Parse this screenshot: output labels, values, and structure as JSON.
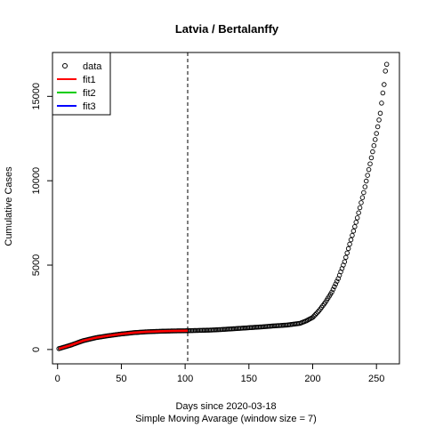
{
  "chart_data": {
    "type": "scatter",
    "title": "Latvia / Bertalanffy",
    "xlabel": "Days since 2020-03-18",
    "subtitle": "Simple Moving Avarage (window size = 7)",
    "ylabel": "Cumulative Cases",
    "xlim": [
      -4,
      268
    ],
    "ylim": [
      -850,
      17600
    ],
    "x_ticks": [
      0,
      50,
      100,
      150,
      200,
      250
    ],
    "y_ticks": [
      0,
      5000,
      10000,
      15000
    ],
    "y_tick_labels": [
      "0",
      "5000",
      "10000",
      "15000"
    ],
    "vline_x": 102,
    "legend_position": "top-left",
    "legend": [
      {
        "label": "data",
        "symbol": "circle",
        "color": "#000000"
      },
      {
        "label": "fit1",
        "symbol": "line",
        "color": "#ff0000"
      },
      {
        "label": "fit2",
        "symbol": "line",
        "color": "#00cd00"
      },
      {
        "label": "fit3",
        "symbol": "line",
        "color": "#0000ff"
      }
    ],
    "data_anchors": [
      [
        1,
        50
      ],
      [
        10,
        250
      ],
      [
        20,
        520
      ],
      [
        30,
        700
      ],
      [
        40,
        820
      ],
      [
        50,
        920
      ],
      [
        60,
        1000
      ],
      [
        70,
        1050
      ],
      [
        80,
        1080
      ],
      [
        90,
        1100
      ],
      [
        100,
        1110
      ],
      [
        110,
        1130
      ],
      [
        120,
        1150
      ],
      [
        130,
        1190
      ],
      [
        140,
        1240
      ],
      [
        150,
        1290
      ],
      [
        160,
        1340
      ],
      [
        170,
        1400
      ],
      [
        180,
        1450
      ],
      [
        190,
        1550
      ],
      [
        195,
        1700
      ],
      [
        200,
        1900
      ],
      [
        205,
        2300
      ],
      [
        210,
        2800
      ],
      [
        215,
        3400
      ],
      [
        220,
        4200
      ],
      [
        225,
        5200
      ],
      [
        230,
        6500
      ],
      [
        235,
        7800
      ],
      [
        240,
        9300
      ],
      [
        245,
        11000
      ],
      [
        250,
        12800
      ],
      [
        253,
        14000
      ],
      [
        255,
        15200
      ],
      [
        256,
        15700
      ],
      [
        257,
        16500
      ],
      [
        258,
        16900
      ]
    ],
    "data_points": [],
    "fit1": {
      "color": "#ff0000",
      "x": [
        1,
        10,
        20,
        30,
        40,
        50,
        60,
        70,
        80,
        90,
        100,
        102
      ],
      "y": [
        40,
        250,
        520,
        700,
        820,
        920,
        1000,
        1050,
        1080,
        1100,
        1110,
        1115
      ]
    },
    "fit2": {
      "color": "#00cd00",
      "x": [],
      "y": []
    },
    "fit3": {
      "color": "#0000ff",
      "x": [],
      "y": []
    }
  }
}
